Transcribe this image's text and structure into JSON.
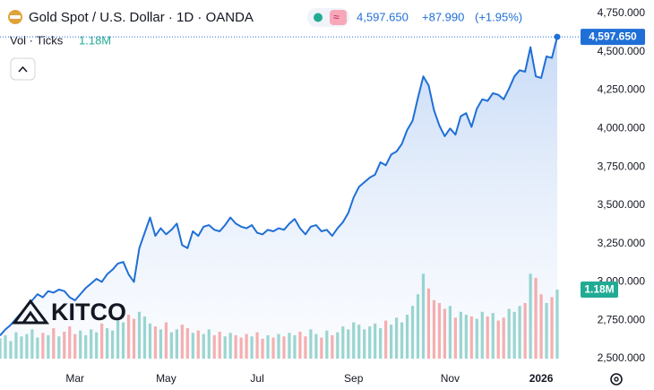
{
  "chart_data": {
    "type": "line",
    "title": "Gold Spot / U.S. Dollar · 1D · OANDA",
    "last_price": {
      "value": 4597.65,
      "label": "4,597.650"
    },
    "change": "+87.990",
    "change_pct": "(+1.95%)",
    "volume_title": "Vol · Ticks",
    "volume_last": {
      "value": 1.18,
      "label": "1.18M"
    },
    "logo": "KITCO",
    "color": "#1f6fd6",
    "up_color": "#26a69a",
    "down_color": "#ef5350",
    "ylim": [
      2500,
      4750
    ],
    "yticks": [
      {
        "value": 2500,
        "label": "2,500.000"
      },
      {
        "value": 2750,
        "label": "2,750.000"
      },
      {
        "value": 3000,
        "label": "3,000.000"
      },
      {
        "value": 3250,
        "label": "3,250.000"
      },
      {
        "value": 3500,
        "label": "3,500.000"
      },
      {
        "value": 3750,
        "label": "3,750.000"
      },
      {
        "value": 4000,
        "label": "4,000.000"
      },
      {
        "value": 4250,
        "label": "4,250.000"
      },
      {
        "value": 4500,
        "label": "4,500.000"
      },
      {
        "value": 4750,
        "label": "4,750.000"
      }
    ],
    "y2lim": [
      0,
      5.9
    ],
    "xticks": [
      {
        "value": 14,
        "label": "Mar"
      },
      {
        "value": 31,
        "label": "May"
      },
      {
        "value": 48,
        "label": "Jul"
      },
      {
        "value": 66,
        "label": "Sep"
      },
      {
        "value": 84,
        "label": "Nov"
      },
      {
        "value": 101,
        "label": "2026"
      }
    ],
    "series": [
      {
        "name": "Gold Spot",
        "values": [
          2650,
          2690,
          2720,
          2760,
          2800,
          2840,
          2880,
          2920,
          2900,
          2940,
          2930,
          2950,
          2940,
          2900,
          2880,
          2920,
          2960,
          2990,
          3020,
          3000,
          3050,
          3080,
          3120,
          3130,
          3050,
          3000,
          3220,
          3320,
          3420,
          3300,
          3350,
          3310,
          3340,
          3380,
          3240,
          3220,
          3330,
          3300,
          3360,
          3370,
          3340,
          3330,
          3370,
          3420,
          3380,
          3360,
          3350,
          3370,
          3320,
          3310,
          3340,
          3330,
          3350,
          3340,
          3380,
          3410,
          3350,
          3310,
          3360,
          3370,
          3330,
          3340,
          3300,
          3350,
          3390,
          3450,
          3550,
          3620,
          3650,
          3680,
          3700,
          3780,
          3760,
          3830,
          3850,
          3900,
          3990,
          4050,
          4200,
          4340,
          4280,
          4120,
          4020,
          3950,
          4000,
          3960,
          4080,
          4100,
          4010,
          4130,
          4190,
          4180,
          4230,
          4220,
          4190,
          4260,
          4340,
          4380,
          4370,
          4530,
          4340,
          4330,
          4470,
          4460,
          4597.65
        ]
      },
      {
        "name": "Vol",
        "axis": "y2",
        "values": [
          0.35,
          0.4,
          0.3,
          0.45,
          0.38,
          0.42,
          0.5,
          0.36,
          0.44,
          0.4,
          0.52,
          0.38,
          0.46,
          0.55,
          0.42,
          0.48,
          0.4,
          0.5,
          0.45,
          0.6,
          0.52,
          0.48,
          0.7,
          0.62,
          0.75,
          0.68,
          0.8,
          0.72,
          0.6,
          0.55,
          0.5,
          0.62,
          0.45,
          0.5,
          0.58,
          0.52,
          0.44,
          0.48,
          0.42,
          0.5,
          0.4,
          0.46,
          0.38,
          0.44,
          0.4,
          0.36,
          0.42,
          0.38,
          0.45,
          0.34,
          0.4,
          0.36,
          0.42,
          0.38,
          0.44,
          0.4,
          0.46,
          0.38,
          0.5,
          0.42,
          0.36,
          0.48,
          0.4,
          0.45,
          0.55,
          0.5,
          0.62,
          0.58,
          0.5,
          0.55,
          0.6,
          0.52,
          0.65,
          0.58,
          0.7,
          0.62,
          0.75,
          0.9,
          1.1,
          1.45,
          1.2,
          1.0,
          0.95,
          0.85,
          0.9,
          0.7,
          0.8,
          0.75,
          0.72,
          0.68,
          0.8,
          0.72,
          0.78,
          0.65,
          0.7,
          0.85,
          0.8,
          0.9,
          0.95,
          1.45,
          1.38,
          1.1,
          0.95,
          1.05,
          1.18
        ]
      }
    ]
  }
}
